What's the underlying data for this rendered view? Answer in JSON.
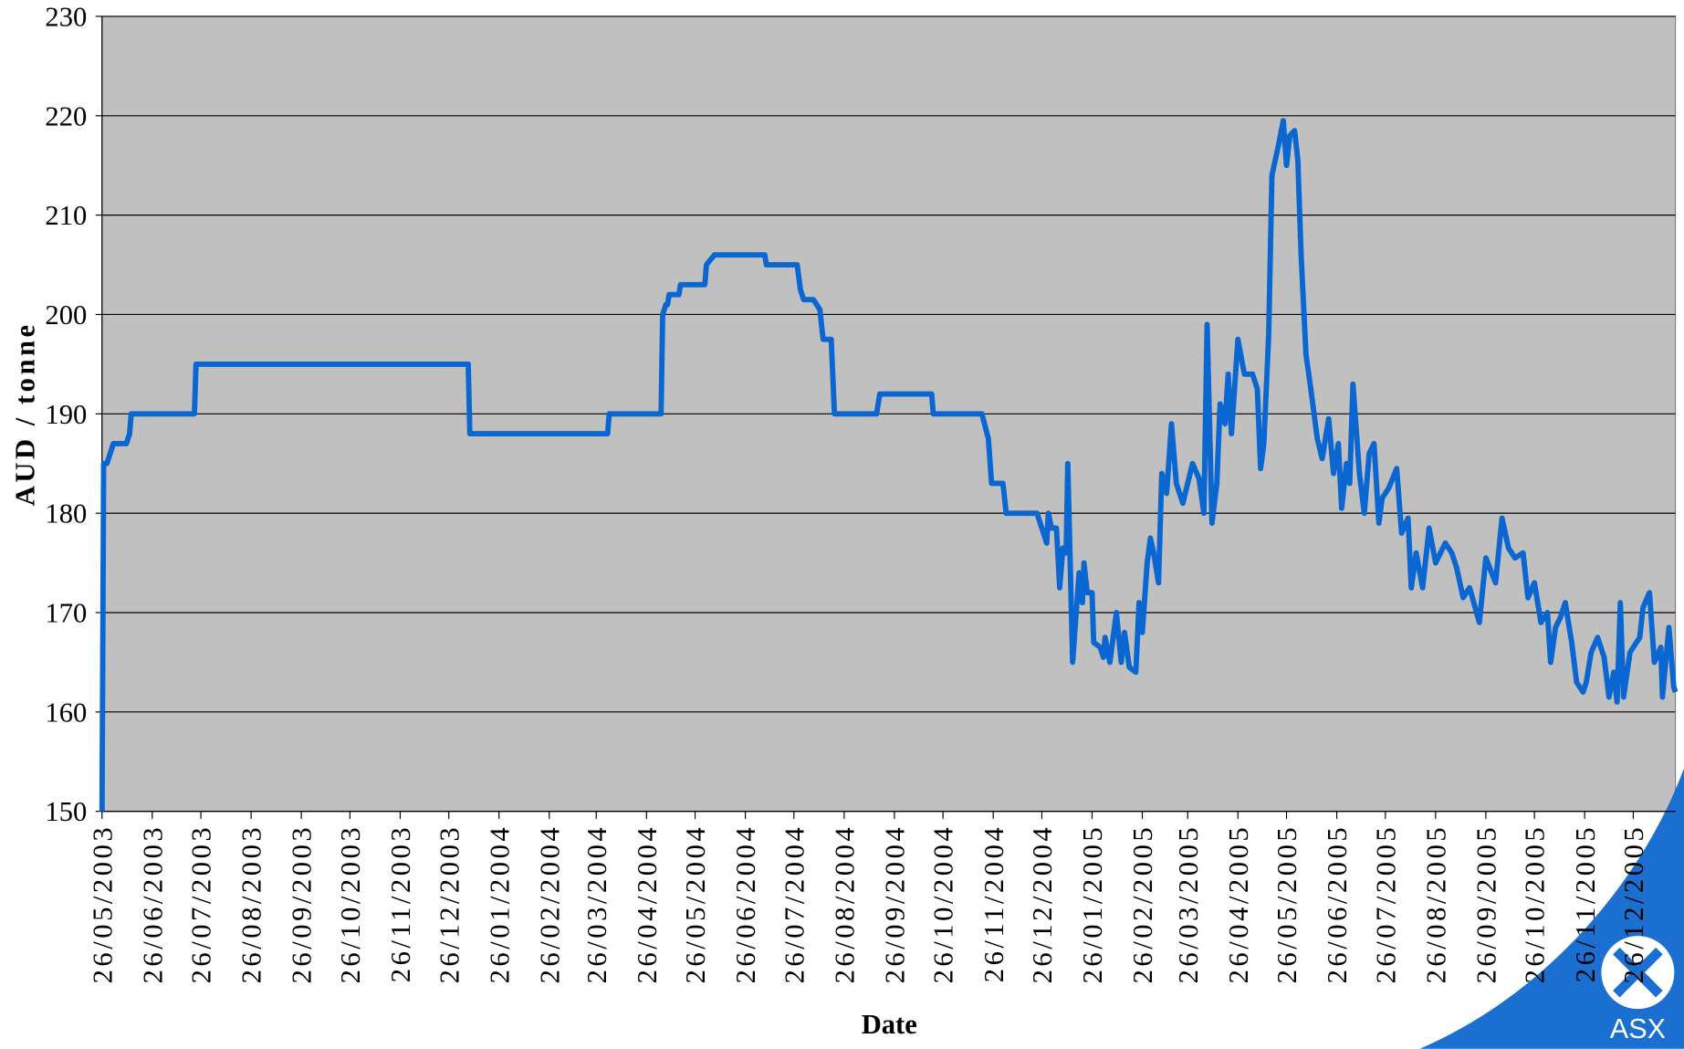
{
  "chart_data": {
    "type": "line",
    "y_label": "AUD / tonne",
    "x_label": "Date",
    "xlim": [
      "26/05/2003",
      "21/01/2006"
    ],
    "xticks": [
      "26/05/2003",
      "26/06/2003",
      "26/07/2003",
      "26/08/2003",
      "26/09/2003",
      "26/10/2003",
      "26/11/2003",
      "26/12/2003",
      "26/01/2004",
      "26/02/2004",
      "26/03/2004",
      "26/04/2004",
      "26/05/2004",
      "26/06/2004",
      "26/07/2004",
      "26/08/2004",
      "26/09/2004",
      "26/10/2004",
      "26/11/2004",
      "26/12/2004",
      "26/01/2005",
      "26/02/2005",
      "26/03/2005",
      "26/04/2005",
      "26/05/2005",
      "26/06/2005",
      "26/07/2005",
      "26/08/2005",
      "26/09/2005",
      "26/10/2005",
      "26/11/2005",
      "26/12/2005"
    ],
    "ylim": [
      150,
      230
    ],
    "yticks": [
      150,
      160,
      170,
      180,
      190,
      200,
      210,
      220,
      230
    ],
    "grid": true,
    "x": [
      "26/05/2003",
      "27/05/2003",
      "29/05/2003",
      "02/06/2003",
      "10/06/2003",
      "12/06/2003",
      "13/06/2003",
      "22/07/2003",
      "23/07/2003",
      "07/01/2004",
      "08/01/2004",
      "02/04/2004",
      "03/04/2004",
      "05/05/2004",
      "06/05/2004",
      "08/05/2004",
      "09/05/2004",
      "10/05/2004",
      "16/05/2004",
      "17/05/2004",
      "01/06/2004",
      "02/06/2004",
      "07/06/2004",
      "08/07/2004",
      "09/07/2004",
      "28/07/2004",
      "30/07/2004",
      "01/08/2004",
      "07/08/2004",
      "11/08/2004",
      "13/08/2004",
      "18/08/2004",
      "20/08/2004",
      "15/09/2004",
      "17/09/2004",
      "19/10/2004",
      "20/10/2004",
      "19/11/2004",
      "23/11/2004",
      "25/11/2004",
      "02/12/2004",
      "04/12/2004",
      "23/12/2004",
      "29/12/2004",
      "30/12/2004",
      "01/01/2005",
      "04/01/2005",
      "06/01/2005",
      "08/01/2005",
      "10/01/2005",
      "11/01/2005",
      "14/01/2005",
      "18/01/2005",
      "20/01/2005",
      "21/01/2005",
      "23/01/2005",
      "26/01/2005",
      "27/01/2005",
      "31/01/2005",
      "02/02/2005",
      "03/02/2005",
      "06/02/2005",
      "10/02/2005",
      "13/02/2005",
      "15/02/2005",
      "18/02/2005",
      "22/02/2005",
      "24/02/2005",
      "26/02/2005",
      "01/03/2005",
      "03/03/2005",
      "05/03/2005",
      "08/03/2005",
      "10/03/2005",
      "13/03/2005",
      "16/03/2005",
      "19/03/2005",
      "23/03/2005",
      "29/03/2005",
      "02/04/2005",
      "05/04/2005",
      "07/04/2005",
      "10/04/2005",
      "13/04/2005",
      "15/04/2005",
      "18/04/2005",
      "20/04/2005",
      "22/04/2005",
      "26/04/2005",
      "30/04/2005",
      "05/05/2005",
      "08/05/2005",
      "10/05/2005",
      "12/05/2005",
      "15/05/2005",
      "17/05/2005",
      "21/05/2005",
      "24/05/2005",
      "26/05/2005",
      "28/05/2005",
      "31/05/2005",
      "02/06/2005",
      "04/06/2005",
      "07/06/2005",
      "10/06/2005",
      "14/06/2005",
      "17/06/2005",
      "21/06/2005",
      "24/06/2005",
      "27/06/2005",
      "29/06/2005",
      "02/07/2005",
      "04/07/2005",
      "06/07/2005",
      "10/07/2005",
      "13/07/2005",
      "16/07/2005",
      "19/07/2005",
      "22/07/2005",
      "24/07/2005",
      "28/07/2005",
      "02/08/2005",
      "05/08/2005",
      "09/08/2005",
      "11/08/2005",
      "14/08/2005",
      "18/08/2005",
      "22/08/2005",
      "26/08/2005",
      "01/09/2005",
      "05/09/2005",
      "08/09/2005",
      "12/09/2005",
      "16/09/2005",
      "22/09/2005",
      "26/09/2005",
      "02/10/2005",
      "06/10/2005",
      "10/10/2005",
      "14/10/2005",
      "19/10/2005",
      "22/10/2005",
      "26/10/2005",
      "30/10/2005",
      "03/11/2005",
      "05/11/2005",
      "08/11/2005",
      "11/11/2005",
      "14/11/2005",
      "18/11/2005",
      "21/11/2005",
      "25/11/2005",
      "27/11/2005",
      "30/11/2005",
      "04/12/2005",
      "08/12/2005",
      "11/12/2005",
      "14/12/2005",
      "16/12/2005",
      "18/12/2005",
      "20/12/2005",
      "24/12/2005",
      "30/12/2005",
      "01/01/2006",
      "05/01/2006",
      "08/01/2006",
      "12/01/2006",
      "13/01/2006",
      "17/01/2006",
      "20/01/2006",
      "21/01/2006"
    ],
    "series": [
      {
        "name": "AUD / tonne",
        "color": "#0a66d0",
        "values": [
          150,
          185,
          185,
          187,
          187,
          188,
          190,
          190,
          195,
          195,
          188,
          188,
          190,
          190,
          200,
          201,
          201,
          202,
          202,
          203,
          203,
          205,
          206,
          206,
          205,
          205,
          202.5,
          201.5,
          201.5,
          200.5,
          197.5,
          197.5,
          190,
          190,
          192,
          192,
          190,
          190,
          187.5,
          183,
          183,
          180,
          180,
          177,
          180,
          178.5,
          178.5,
          172.5,
          176.5,
          176,
          185,
          165,
          174,
          171,
          175,
          172,
          172,
          167,
          166.5,
          165.5,
          167.5,
          165,
          170,
          165,
          168,
          164.5,
          164,
          171,
          168,
          175,
          177.5,
          176,
          173,
          184,
          182,
          189,
          183,
          181,
          185,
          183.5,
          180,
          199,
          179,
          183,
          191,
          189,
          194,
          188,
          197.5,
          194,
          194,
          192.5,
          184.5,
          187,
          198,
          214,
          217,
          219.5,
          215,
          218,
          218.5,
          215.5,
          206,
          196,
          192.5,
          187.5,
          185.5,
          189.5,
          184,
          187,
          180.5,
          185,
          183,
          193,
          184,
          180,
          186,
          187,
          179,
          181.5,
          182.5,
          184.5,
          178,
          179.5,
          172.5,
          176,
          172.5,
          178.5,
          175,
          177,
          176,
          174.5,
          171.5,
          172.5,
          169,
          175.5,
          173,
          179.5,
          176.5,
          175.5,
          176,
          171.5,
          173,
          169,
          170,
          165,
          168.5,
          169.5,
          171,
          167,
          163,
          162,
          163,
          166,
          167.5,
          165.5,
          161.5,
          164,
          161,
          171,
          161.5,
          166,
          167.5,
          170.5,
          172,
          165,
          166.5,
          161.5,
          168.5,
          162.5,
          162
        ]
      }
    ]
  },
  "logo": "ASX"
}
